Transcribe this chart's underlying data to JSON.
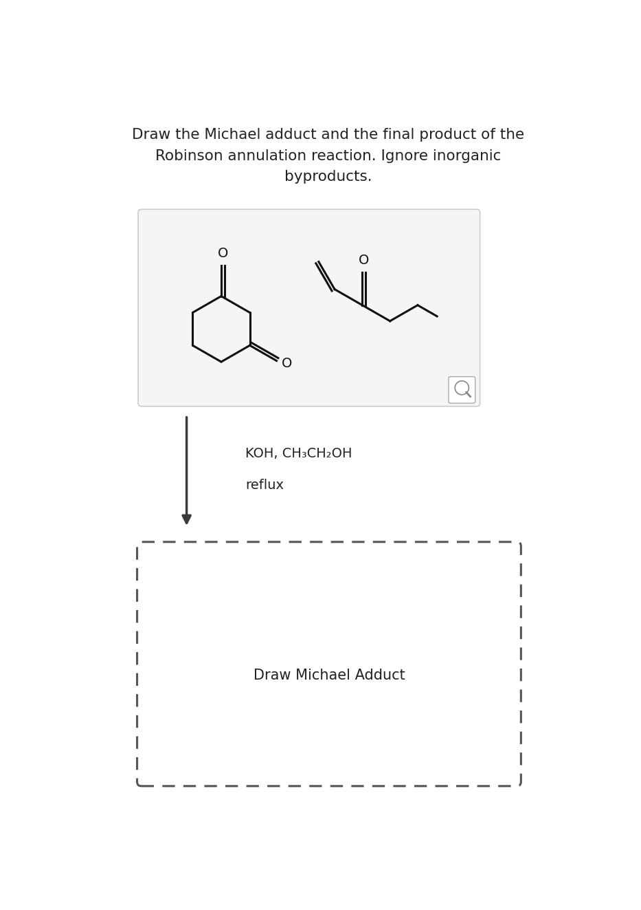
{
  "title_line1": "Draw the Michael adduct and the final product of the",
  "title_line2": "Robinson annulation reaction. Ignore inorganic",
  "title_line3": "byproducts.",
  "title_fontsize": 15.5,
  "reagent_line1": "KOH, CH₃CH₂OH",
  "reagent_line2": "reflux",
  "draw_label": "Draw Michael Adduct",
  "background_color": "#ffffff",
  "box_bg": "#f5f5f5",
  "arrow_color": "#3a3a3a",
  "dashed_color": "#555555",
  "molecule_color": "#111111"
}
